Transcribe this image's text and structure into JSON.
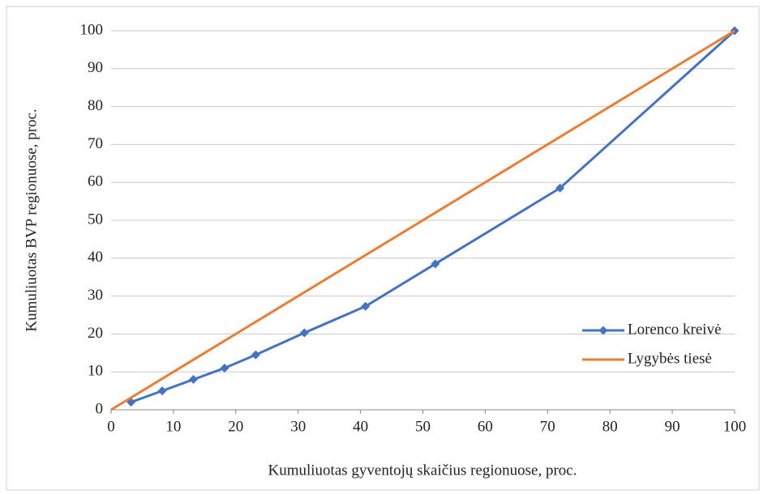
{
  "chart_data": {
    "type": "line",
    "xlabel": "Kumuliuotas gyventojų skaičius regionuose, proc.",
    "ylabel": "Kumuliuotas BVP regionuose, proc.",
    "series": [
      {
        "name": "Lorenco kreivė",
        "color": "#4472c4",
        "marker": "diamond",
        "x": [
          3.2,
          8.2,
          13.2,
          18.2,
          23.2,
          31,
          40.8,
          52,
          72,
          100
        ],
        "values": [
          2,
          5,
          8,
          11,
          14.5,
          20.3,
          27.3,
          38.5,
          58.5,
          100
        ]
      },
      {
        "name": "Lygybės tiesė",
        "color": "#ed7d31",
        "x": [
          0,
          100
        ],
        "values": [
          0,
          100
        ]
      }
    ],
    "xlim": [
      0,
      100
    ],
    "xticks": [
      0,
      10,
      20,
      30,
      40,
      50,
      60,
      70,
      80,
      90,
      100
    ],
    "ylim": [
      0,
      100
    ],
    "yticks": [
      0,
      10,
      20,
      30,
      40,
      50,
      60,
      70,
      80,
      90,
      100
    ],
    "grid": true,
    "legend": "right"
  }
}
